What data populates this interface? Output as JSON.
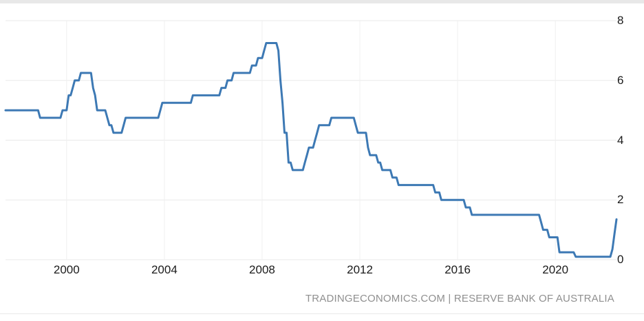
{
  "watermark": {
    "text": "TRADINGECONOMICS.COM | RESERVE BANK OF AUSTRALIA"
  },
  "colors": {
    "line": "#3d79b4",
    "grid_horizontal": "#e9e9e9",
    "grid_vertical": "#f0f0f0",
    "tick_label": "#1b1b1b",
    "watermark": "#8f8f8f",
    "separator": "#e8e8e8"
  },
  "chart_data": {
    "type": "line",
    "title": "",
    "xlabel": "",
    "ylabel": "",
    "grid": true,
    "legend": false,
    "ylim": [
      0,
      8
    ],
    "y_ticks": [
      8,
      6,
      4,
      2,
      0
    ],
    "x_ticks": [
      2000,
      2004,
      2008,
      2012,
      2016,
      2020
    ],
    "x_range": [
      "1997-07",
      "2022-07"
    ],
    "points_note": "RBA cash rate change points [month, percent]; value holds until next point",
    "points": [
      [
        "1997-07",
        5.0
      ],
      [
        "1998-12",
        4.75
      ],
      [
        "1999-11",
        5.0
      ],
      [
        "2000-02",
        5.5
      ],
      [
        "2000-04",
        5.75
      ],
      [
        "2000-05",
        6.0
      ],
      [
        "2000-08",
        6.25
      ],
      [
        "2001-02",
        5.75
      ],
      [
        "2001-03",
        5.5
      ],
      [
        "2001-04",
        5.0
      ],
      [
        "2001-09",
        4.75
      ],
      [
        "2001-10",
        4.5
      ],
      [
        "2001-12",
        4.25
      ],
      [
        "2002-05",
        4.5
      ],
      [
        "2002-06",
        4.75
      ],
      [
        "2003-11",
        5.0
      ],
      [
        "2003-12",
        5.25
      ],
      [
        "2005-03",
        5.5
      ],
      [
        "2006-05",
        5.75
      ],
      [
        "2006-08",
        6.0
      ],
      [
        "2006-11",
        6.25
      ],
      [
        "2007-08",
        6.5
      ],
      [
        "2007-11",
        6.75
      ],
      [
        "2008-02",
        7.0
      ],
      [
        "2008-03",
        7.25
      ],
      [
        "2008-09",
        7.0
      ],
      [
        "2008-10",
        6.0
      ],
      [
        "2008-11",
        5.25
      ],
      [
        "2008-12",
        4.25
      ],
      [
        "2009-02",
        3.25
      ],
      [
        "2009-04",
        3.0
      ],
      [
        "2009-10",
        3.25
      ],
      [
        "2009-11",
        3.5
      ],
      [
        "2009-12",
        3.75
      ],
      [
        "2010-03",
        4.0
      ],
      [
        "2010-04",
        4.25
      ],
      [
        "2010-05",
        4.5
      ],
      [
        "2010-11",
        4.75
      ],
      [
        "2011-11",
        4.5
      ],
      [
        "2011-12",
        4.25
      ],
      [
        "2012-05",
        3.75
      ],
      [
        "2012-06",
        3.5
      ],
      [
        "2012-10",
        3.25
      ],
      [
        "2012-12",
        3.0
      ],
      [
        "2013-05",
        2.75
      ],
      [
        "2013-08",
        2.5
      ],
      [
        "2015-02",
        2.25
      ],
      [
        "2015-05",
        2.0
      ],
      [
        "2016-05",
        1.75
      ],
      [
        "2016-08",
        1.5
      ],
      [
        "2019-06",
        1.25
      ],
      [
        "2019-07",
        1.0
      ],
      [
        "2019-10",
        0.75
      ],
      [
        "2020-03",
        0.25
      ],
      [
        "2020-11",
        0.1
      ],
      [
        "2022-05",
        0.35
      ],
      [
        "2022-06",
        0.85
      ],
      [
        "2022-07",
        1.35
      ]
    ]
  }
}
